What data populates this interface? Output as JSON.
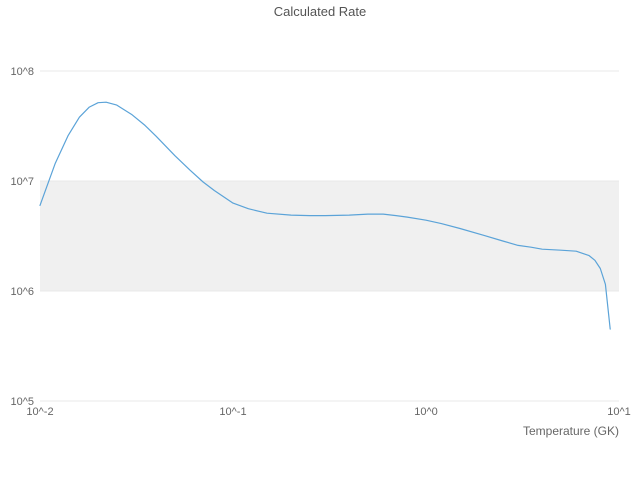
{
  "chart_data": {
    "type": "line",
    "title": "Calculated Rate",
    "xlabel": "Temperature (GK)",
    "ylabel": "",
    "xscale": "log",
    "yscale": "log",
    "xlim": [
      0.01,
      10
    ],
    "ylim": [
      100000.0,
      100000000.0
    ],
    "grid": true,
    "legend": "none",
    "x_ticks": [
      {
        "value": 0.01,
        "label": "10^-2"
      },
      {
        "value": 0.1,
        "label": "10^-1"
      },
      {
        "value": 1,
        "label": "10^0"
      },
      {
        "value": 10,
        "label": "10^1"
      }
    ],
    "y_ticks": [
      {
        "value": 100000.0,
        "label": "10^5"
      },
      {
        "value": 1000000.0,
        "label": "10^6"
      },
      {
        "value": 10000000.0,
        "label": "10^7"
      },
      {
        "value": 100000000.0,
        "label": "10^8"
      }
    ],
    "shaded_band": {
      "from": 1000000.0,
      "to": 10000000.0,
      "color": "#f0f0f0"
    },
    "grid_color": "#e8e8e8",
    "text_color": "#666666",
    "title_color": "#545454",
    "series": [
      {
        "name": "calculated-rate",
        "color": "#5ba3d8",
        "x": [
          0.01,
          0.012,
          0.014,
          0.016,
          0.018,
          0.02,
          0.022,
          0.025,
          0.03,
          0.035,
          0.04,
          0.05,
          0.06,
          0.07,
          0.08,
          0.1,
          0.12,
          0.15,
          0.2,
          0.25,
          0.3,
          0.4,
          0.5,
          0.6,
          0.7,
          0.8,
          1.0,
          1.2,
          1.5,
          2.0,
          2.5,
          3.0,
          3.5,
          4.0,
          5.0,
          6.0,
          7.0,
          7.5,
          8.0,
          8.5,
          9.0
        ],
        "y": [
          6000000.0,
          14500000.0,
          26000000.0,
          38000000.0,
          47000000.0,
          51500000.0,
          52000000.0,
          49000000.0,
          40000000.0,
          32000000.0,
          25500000.0,
          17000000.0,
          12500000.0,
          9800000.0,
          8200000.0,
          6300000.0,
          5600000.0,
          5100000.0,
          4900000.0,
          4850000.0,
          4850000.0,
          4900000.0,
          5000000.0,
          5000000.0,
          4850000.0,
          4700000.0,
          4400000.0,
          4100000.0,
          3700000.0,
          3200000.0,
          2850000.0,
          2600000.0,
          2500000.0,
          2400000.0,
          2350000.0,
          2300000.0,
          2100000.0,
          1900000.0,
          1600000.0,
          1150000.0,
          450000.0
        ]
      }
    ]
  }
}
